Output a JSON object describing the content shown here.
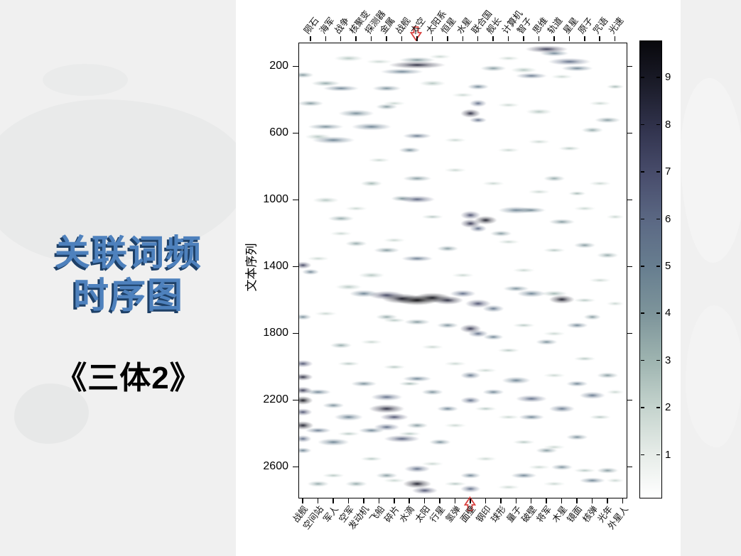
{
  "slide": {
    "title_line1": "关联词频",
    "title_line2": "时序图",
    "subtitle": "《三体2》",
    "title_color": "#4e81bd",
    "title_shadow_color": "#1d3f66",
    "background_color": "#f0f0f0",
    "map_watermark_color": "#e8e9e9"
  },
  "chart_data": {
    "type": "heatmap",
    "title": "",
    "xlabel": "",
    "ylabel": "文本序列",
    "ylim": [
      60,
      2780
    ],
    "y_ticks": [
      200,
      600,
      1000,
      1400,
      1800,
      2200,
      2600
    ],
    "x_categories_top": [
      "陨石",
      "海军",
      "战争",
      "核聚变",
      "探测器",
      "金属",
      "战舰",
      "太空",
      "太阳系",
      "恒星",
      "水星",
      "联合国",
      "舰长",
      "计算机",
      "智子",
      "思维",
      "轨道",
      "星星",
      "原子",
      "咒语",
      "光速"
    ],
    "x_categories_bottom": [
      "战舰",
      "空间站",
      "军人",
      "空军",
      "发动机",
      "飞船",
      "碎片",
      "水滴",
      "太阳",
      "行星",
      "氢弹",
      "面壁",
      "钢印",
      "球形",
      "量子",
      "破壁",
      "将军",
      "木星",
      "镜面",
      "核弹",
      "光年",
      "外星人"
    ],
    "annotations": [
      {
        "word": "太空",
        "edge": "top",
        "arrow_direction": "down",
        "color": "#d8403e"
      },
      {
        "word": "面壁",
        "edge": "bottom",
        "arrow_direction": "up",
        "color": "#d8403e"
      }
    ],
    "colorbar": {
      "ticks": [
        1,
        2,
        3,
        4,
        5,
        6,
        7,
        8,
        9
      ],
      "value_range": [
        0,
        9.7
      ],
      "gradient_low_to_high": [
        "#ffffff",
        "#e5ebe7",
        "#c4d3cd",
        "#9eb4b0",
        "#7e959b",
        "#687f90",
        "#5c6a85",
        "#4a4f6e",
        "#333550",
        "#1c1d2b",
        "#08080c"
      ]
    },
    "hotspots_col_y_val_w_h": [
      [
        15,
        190,
        0.85,
        40,
        5
      ],
      [
        15,
        160,
        0.4,
        25,
        4
      ],
      [
        13,
        230,
        0.5,
        30,
        4
      ],
      [
        32,
        95,
        0.8,
        30,
        5
      ],
      [
        33,
        120,
        0.5,
        20,
        4
      ],
      [
        35,
        170,
        0.6,
        30,
        5
      ],
      [
        36,
        210,
        0.5,
        22,
        4
      ],
      [
        30,
        255,
        0.55,
        22,
        4
      ],
      [
        25,
        210,
        0.4,
        18,
        4
      ],
      [
        23,
        320,
        0.5,
        15,
        4
      ],
      [
        23,
        420,
        0.6,
        12,
        5
      ],
      [
        22,
        480,
        0.85,
        14,
        6
      ],
      [
        23,
        520,
        0.6,
        12,
        4
      ],
      [
        5,
        330,
        0.5,
        25,
        4
      ],
      [
        3,
        300,
        0.35,
        20,
        4
      ],
      [
        0,
        250,
        0.4,
        15,
        4
      ],
      [
        1,
        420,
        0.4,
        18,
        4
      ],
      [
        7,
        480,
        0.45,
        25,
        5
      ],
      [
        11,
        330,
        0.45,
        20,
        4
      ],
      [
        11,
        440,
        0.4,
        15,
        4
      ],
      [
        9,
        560,
        0.5,
        28,
        5
      ],
      [
        3,
        560,
        0.45,
        25,
        4
      ],
      [
        4,
        640,
        0.5,
        30,
        5
      ],
      [
        15,
        615,
        0.55,
        20,
        4
      ],
      [
        14,
        700,
        0.45,
        15,
        4
      ],
      [
        40,
        520,
        0.4,
        18,
        4
      ],
      [
        38,
        580,
        0.35,
        15,
        4
      ],
      [
        41,
        320,
        0.3,
        12,
        3
      ],
      [
        15,
        870,
        0.4,
        20,
        4
      ],
      [
        15,
        995,
        0.65,
        25,
        5
      ],
      [
        13,
        990,
        0.4,
        15,
        4
      ],
      [
        22,
        1090,
        0.7,
        14,
        6
      ],
      [
        22,
        1140,
        0.8,
        14,
        6
      ],
      [
        24,
        1120,
        0.9,
        16,
        6
      ],
      [
        23,
        1170,
        0.6,
        12,
        5
      ],
      [
        28,
        1060,
        0.5,
        25,
        5
      ],
      [
        30,
        1060,
        0.45,
        20,
        4
      ],
      [
        26,
        1200,
        0.4,
        15,
        4
      ],
      [
        34,
        1130,
        0.4,
        18,
        4
      ],
      [
        0,
        1390,
        0.75,
        12,
        5
      ],
      [
        1,
        1430,
        0.5,
        12,
        4
      ],
      [
        15,
        1350,
        0.55,
        22,
        4
      ],
      [
        11,
        1300,
        0.4,
        18,
        4
      ],
      [
        7,
        1260,
        0.35,
        15,
        4
      ],
      [
        19,
        1290,
        0.4,
        15,
        4
      ],
      [
        37,
        1270,
        0.4,
        15,
        4
      ],
      [
        40,
        1330,
        0.35,
        15,
        4
      ],
      [
        5,
        1110,
        0.35,
        18,
        4
      ],
      [
        9,
        900,
        0.3,
        15,
        4
      ],
      [
        33,
        870,
        0.35,
        15,
        4
      ],
      [
        36,
        960,
        0.3,
        12,
        3
      ],
      [
        8,
        1560,
        0.5,
        20,
        5
      ],
      [
        11,
        1570,
        0.75,
        25,
        6
      ],
      [
        13,
        1590,
        0.9,
        28,
        7
      ],
      [
        15,
        1600,
        1.0,
        30,
        7
      ],
      [
        17,
        1585,
        0.95,
        26,
        7
      ],
      [
        19,
        1600,
        0.85,
        22,
        6
      ],
      [
        21,
        1560,
        0.6,
        18,
        5
      ],
      [
        23,
        1620,
        0.7,
        18,
        6
      ],
      [
        25,
        1650,
        0.55,
        15,
        5
      ],
      [
        34,
        1595,
        0.9,
        18,
        6
      ],
      [
        30,
        1560,
        0.5,
        20,
        5
      ],
      [
        28,
        1530,
        0.45,
        18,
        4
      ],
      [
        22,
        1770,
        0.8,
        15,
        6
      ],
      [
        23,
        1800,
        0.6,
        14,
        5
      ],
      [
        25,
        1820,
        0.5,
        14,
        4
      ],
      [
        19,
        1750,
        0.45,
        15,
        4
      ],
      [
        15,
        1730,
        0.4,
        18,
        4
      ],
      [
        11,
        1700,
        0.35,
        15,
        4
      ],
      [
        0,
        1700,
        0.45,
        12,
        4
      ],
      [
        36,
        1750,
        0.5,
        15,
        4
      ],
      [
        38,
        1700,
        0.4,
        12,
        4
      ],
      [
        32,
        1850,
        0.45,
        15,
        4
      ],
      [
        5,
        1870,
        0.35,
        15,
        4
      ],
      [
        0,
        1980,
        0.7,
        14,
        5
      ],
      [
        0,
        2060,
        0.85,
        14,
        5
      ],
      [
        0,
        2140,
        0.8,
        13,
        5
      ],
      [
        0,
        2200,
        0.95,
        14,
        6
      ],
      [
        0,
        2270,
        0.7,
        13,
        5
      ],
      [
        0,
        2350,
        0.9,
        15,
        6
      ],
      [
        0,
        2430,
        0.6,
        12,
        5
      ],
      [
        0,
        2500,
        0.5,
        12,
        4
      ],
      [
        2,
        2150,
        0.5,
        18,
        4
      ],
      [
        2,
        2380,
        0.55,
        18,
        4
      ],
      [
        4,
        2230,
        0.45,
        15,
        4
      ],
      [
        6,
        2300,
        0.5,
        20,
        5
      ],
      [
        4,
        2450,
        0.5,
        22,
        5
      ],
      [
        8,
        2100,
        0.45,
        18,
        4
      ],
      [
        11,
        2180,
        0.6,
        22,
        5
      ],
      [
        11,
        2250,
        0.85,
        25,
        6
      ],
      [
        12,
        2300,
        0.7,
        20,
        5
      ],
      [
        11,
        2360,
        0.6,
        18,
        5
      ],
      [
        13,
        2430,
        0.65,
        25,
        5
      ],
      [
        9,
        2380,
        0.5,
        18,
        4
      ],
      [
        15,
        2070,
        0.5,
        20,
        4
      ],
      [
        17,
        2150,
        0.45,
        15,
        4
      ],
      [
        19,
        2250,
        0.5,
        15,
        4
      ],
      [
        18,
        2450,
        0.45,
        15,
        4
      ],
      [
        15,
        2350,
        0.4,
        15,
        4
      ],
      [
        22,
        2050,
        0.55,
        14,
        5
      ],
      [
        22,
        2200,
        0.6,
        14,
        5
      ],
      [
        25,
        2150,
        0.5,
        15,
        4
      ],
      [
        28,
        2080,
        0.5,
        20,
        5
      ],
      [
        30,
        2190,
        0.6,
        22,
        5
      ],
      [
        30,
        2300,
        0.5,
        18,
        4
      ],
      [
        34,
        2250,
        0.55,
        18,
        5
      ],
      [
        36,
        2100,
        0.5,
        15,
        4
      ],
      [
        38,
        2170,
        0.55,
        18,
        5
      ],
      [
        40,
        2050,
        0.4,
        15,
        4
      ],
      [
        36,
        2420,
        0.45,
        15,
        4
      ],
      [
        32,
        2500,
        0.4,
        15,
        4
      ],
      [
        15,
        2610,
        0.6,
        18,
        5
      ],
      [
        15,
        2700,
        0.9,
        20,
        6
      ],
      [
        16,
        2740,
        0.7,
        18,
        5
      ],
      [
        22,
        2650,
        0.5,
        14,
        4
      ],
      [
        22,
        2730,
        0.6,
        14,
        5
      ],
      [
        11,
        2650,
        0.4,
        15,
        4
      ],
      [
        7,
        2700,
        0.35,
        15,
        4
      ],
      [
        29,
        2650,
        0.5,
        18,
        4
      ],
      [
        34,
        2600,
        0.45,
        15,
        4
      ],
      [
        38,
        2680,
        0.5,
        18,
        4
      ],
      [
        40,
        2620,
        0.4,
        15,
        4
      ],
      [
        2,
        2700,
        0.35,
        15,
        4
      ],
      [
        6,
        150,
        0.25,
        20,
        4
      ],
      [
        10,
        170,
        0.2,
        18,
        3
      ],
      [
        18,
        140,
        0.2,
        15,
        3
      ],
      [
        27,
        150,
        0.2,
        15,
        3
      ],
      [
        29,
        220,
        0.25,
        18,
        4
      ],
      [
        34,
        260,
        0.2,
        15,
        3
      ],
      [
        17,
        300,
        0.25,
        18,
        4
      ],
      [
        21,
        370,
        0.2,
        15,
        3
      ],
      [
        12,
        420,
        0.2,
        15,
        3
      ],
      [
        27,
        430,
        0.2,
        15,
        3
      ],
      [
        31,
        470,
        0.25,
        18,
        4
      ],
      [
        39,
        420,
        0.2,
        15,
        3
      ],
      [
        2,
        620,
        0.25,
        18,
        4
      ],
      [
        20,
        640,
        0.2,
        15,
        3
      ],
      [
        27,
        700,
        0.2,
        15,
        3
      ],
      [
        31,
        650,
        0.2,
        15,
        3
      ],
      [
        35,
        690,
        0.25,
        15,
        3
      ],
      [
        10,
        760,
        0.2,
        15,
        3
      ],
      [
        20,
        820,
        0.2,
        15,
        3
      ],
      [
        25,
        900,
        0.2,
        15,
        3
      ],
      [
        31,
        950,
        0.2,
        15,
        3
      ],
      [
        39,
        900,
        0.2,
        15,
        3
      ],
      [
        3,
        1000,
        0.25,
        18,
        4
      ],
      [
        7,
        1050,
        0.2,
        15,
        3
      ],
      [
        17,
        1100,
        0.25,
        15,
        3
      ],
      [
        37,
        1050,
        0.2,
        15,
        3
      ],
      [
        41,
        1100,
        0.2,
        12,
        3
      ],
      [
        5,
        1200,
        0.2,
        15,
        3
      ],
      [
        12,
        1240,
        0.2,
        15,
        3
      ],
      [
        27,
        1250,
        0.2,
        15,
        3
      ],
      [
        33,
        1300,
        0.25,
        15,
        3
      ],
      [
        2,
        1350,
        0.2,
        15,
        3
      ],
      [
        9,
        1450,
        0.25,
        18,
        4
      ],
      [
        21,
        1450,
        0.2,
        15,
        3
      ],
      [
        29,
        1420,
        0.2,
        15,
        3
      ],
      [
        39,
        1480,
        0.2,
        15,
        3
      ],
      [
        6,
        1520,
        0.25,
        18,
        4
      ],
      [
        33,
        1560,
        0.3,
        18,
        4
      ],
      [
        37,
        1600,
        0.25,
        15,
        3
      ],
      [
        41,
        1620,
        0.2,
        12,
        3
      ],
      [
        3,
        1680,
        0.2,
        15,
        3
      ],
      [
        12,
        1720,
        0.25,
        15,
        3
      ],
      [
        29,
        1750,
        0.25,
        15,
        3
      ],
      [
        33,
        1800,
        0.2,
        15,
        3
      ],
      [
        9,
        1850,
        0.2,
        15,
        3
      ],
      [
        17,
        1880,
        0.2,
        15,
        3
      ],
      [
        27,
        1900,
        0.25,
        15,
        3
      ],
      [
        37,
        1950,
        0.25,
        15,
        3
      ],
      [
        6,
        1980,
        0.25,
        15,
        3
      ],
      [
        12,
        2000,
        0.25,
        15,
        3
      ],
      [
        20,
        1980,
        0.2,
        15,
        3
      ],
      [
        24,
        2020,
        0.2,
        15,
        3
      ],
      [
        33,
        2050,
        0.2,
        15,
        3
      ],
      [
        41,
        2150,
        0.2,
        12,
        3
      ],
      [
        14,
        2100,
        0.3,
        15,
        3
      ],
      [
        24,
        2250,
        0.25,
        15,
        3
      ],
      [
        27,
        2300,
        0.2,
        15,
        3
      ],
      [
        39,
        2300,
        0.25,
        15,
        3
      ],
      [
        6,
        2400,
        0.25,
        15,
        3
      ],
      [
        14,
        2400,
        0.25,
        15,
        3
      ],
      [
        20,
        2350,
        0.2,
        15,
        3
      ],
      [
        29,
        2450,
        0.25,
        15,
        3
      ],
      [
        33,
        2480,
        0.2,
        15,
        3
      ],
      [
        9,
        2550,
        0.25,
        15,
        3
      ],
      [
        17,
        2580,
        0.2,
        15,
        3
      ],
      [
        24,
        2550,
        0.2,
        15,
        3
      ],
      [
        31,
        2600,
        0.2,
        15,
        3
      ],
      [
        37,
        2620,
        0.25,
        15,
        3
      ],
      [
        4,
        2650,
        0.25,
        15,
        3
      ],
      [
        12,
        2680,
        0.2,
        15,
        3
      ],
      [
        20,
        2700,
        0.25,
        15,
        3
      ],
      [
        27,
        2720,
        0.2,
        15,
        3
      ],
      [
        33,
        2700,
        0.2,
        15,
        3
      ],
      [
        41,
        2680,
        0.2,
        12,
        3
      ]
    ]
  }
}
